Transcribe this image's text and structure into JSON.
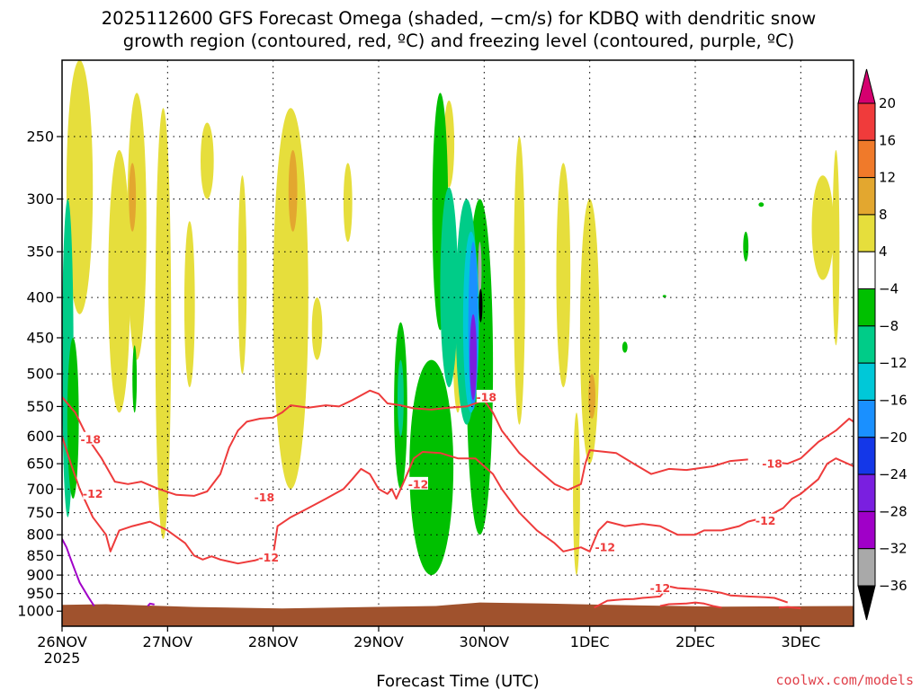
{
  "title": {
    "line1": "2025112600 GFS Forecast Omega (shaded, −cm/s) for KDBQ with dendritic snow",
    "line2": "growth region (contoured, red, ºC) and freezing level (contoured, purple, ºC)"
  },
  "credit": "coolwx.com/models",
  "chart_data": {
    "type": "heatmap",
    "title": "2025112600 GFS Forecast Omega (shaded, −cm/s) for KDBQ with dendritic snow growth region (contoured, red, ºC) and freezing level (contoured, purple, ºC)",
    "xlabel": "Forecast Time (UTC)",
    "ylabel": "",
    "x_ticks": [
      {
        "label": "26NOV",
        "sublabel": "2025",
        "t_hours": 0
      },
      {
        "label": "27NOV",
        "t_hours": 24
      },
      {
        "label": "28NOV",
        "t_hours": 48
      },
      {
        "label": "29NOV",
        "t_hours": 72
      },
      {
        "label": "30NOV",
        "t_hours": 96
      },
      {
        "label": "1DEC",
        "t_hours": 120
      },
      {
        "label": "2DEC",
        "t_hours": 144
      },
      {
        "label": "3DEC",
        "t_hours": 168
      }
    ],
    "xlim_hours": [
      0,
      180
    ],
    "y_ticks": [
      250,
      300,
      350,
      400,
      450,
      500,
      550,
      600,
      650,
      700,
      750,
      800,
      850,
      900,
      950,
      1000
    ],
    "ylim_hPa": [
      1045,
      200
    ],
    "y_scale": "log",
    "grid": "dotted",
    "colorbar": {
      "labels": [
        "20",
        "16",
        "12",
        "8",
        "4",
        "−4",
        "−8",
        "−12",
        "−16",
        "−20",
        "−24",
        "−28",
        "−32",
        "−36"
      ],
      "colors": [
        "#d5006f",
        "#f03b3b",
        "#f07a2a",
        "#e3a72f",
        "#e6de3c",
        "#ffffff",
        "#00c000",
        "#00cc88",
        "#00c8d8",
        "#1a90ff",
        "#1437e8",
        "#7a1fe0",
        "#a000c8",
        "#a9a9a9",
        "#000000"
      ]
    },
    "omega_regions": [
      {
        "color": "#e6de3c",
        "cx": 4,
        "p_top": 200,
        "p_bot": 420,
        "hw": 3
      },
      {
        "color": "#e6de3c",
        "cx": 13,
        "p_top": 260,
        "p_bot": 560,
        "hw": 2.5
      },
      {
        "color": "#e6de3c",
        "cx": 17,
        "p_top": 220,
        "p_bot": 480,
        "hw": 2.2
      },
      {
        "color": "#e3a72f",
        "cx": 16,
        "p_top": 270,
        "p_bot": 330,
        "hw": 0.8
      },
      {
        "color": "#e6de3c",
        "cx": 23,
        "p_top": 230,
        "p_bot": 810,
        "hw": 1.8
      },
      {
        "color": "#e6de3c",
        "cx": 29,
        "p_top": 320,
        "p_bot": 520,
        "hw": 1.2
      },
      {
        "color": "#e6de3c",
        "cx": 33,
        "p_top": 240,
        "p_bot": 300,
        "hw": 1.5
      },
      {
        "color": "#e6de3c",
        "cx": 41,
        "p_top": 280,
        "p_bot": 500,
        "hw": 1
      },
      {
        "color": "#e6de3c",
        "cx": 52,
        "p_top": 230,
        "p_bot": 700,
        "hw": 4
      },
      {
        "color": "#e3a72f",
        "cx": 52.5,
        "p_top": 260,
        "p_bot": 330,
        "hw": 1
      },
      {
        "color": "#e6de3c",
        "cx": 58,
        "p_top": 400,
        "p_bot": 480,
        "hw": 1.2
      },
      {
        "color": "#e6de3c",
        "cx": 65,
        "p_top": 270,
        "p_bot": 340,
        "hw": 1
      },
      {
        "color": "#e6de3c",
        "cx": 88,
        "p_top": 225,
        "p_bot": 290,
        "hw": 1.2
      },
      {
        "color": "#e6de3c",
        "cx": 90,
        "p_top": 350,
        "p_bot": 560,
        "hw": 1.2
      },
      {
        "color": "#e6de3c",
        "cx": 104,
        "p_top": 250,
        "p_bot": 580,
        "hw": 1.3
      },
      {
        "color": "#e6de3c",
        "cx": 114,
        "p_top": 270,
        "p_bot": 520,
        "hw": 1.6
      },
      {
        "color": "#e6de3c",
        "cx": 120,
        "p_top": 300,
        "p_bot": 650,
        "hw": 2.2
      },
      {
        "color": "#e3a72f",
        "cx": 120.5,
        "p_top": 500,
        "p_bot": 570,
        "hw": 0.8
      },
      {
        "color": "#e6de3c",
        "cx": 117,
        "p_top": 560,
        "p_bot": 900,
        "hw": 0.8
      },
      {
        "color": "#e6de3c",
        "cx": 173,
        "p_top": 280,
        "p_bot": 380,
        "hw": 2.5
      },
      {
        "color": "#e6de3c",
        "cx": 176,
        "p_top": 260,
        "p_bot": 460,
        "hw": 0.8
      },
      {
        "color": "#00cc88",
        "cx": 1.3,
        "p_top": 300,
        "p_bot": 760,
        "hw": 1.3
      },
      {
        "color": "#00c000",
        "cx": 2.5,
        "p_top": 450,
        "p_bot": 720,
        "hw": 1.3
      },
      {
        "color": "#00c000",
        "cx": 16.5,
        "p_top": 460,
        "p_bot": 560,
        "hw": 0.5
      },
      {
        "color": "#00c000",
        "cx": 77,
        "p_top": 430,
        "p_bot": 700,
        "hw": 1.5
      },
      {
        "color": "#00cc88",
        "cx": 77,
        "p_top": 480,
        "p_bot": 600,
        "hw": 0.7
      },
      {
        "color": "#00c000",
        "cx": 84,
        "p_top": 480,
        "p_bot": 900,
        "hw": 5
      },
      {
        "color": "#00c000",
        "cx": 95,
        "p_top": 300,
        "p_bot": 800,
        "hw": 3
      },
      {
        "color": "#00c000",
        "cx": 86,
        "p_top": 220,
        "p_bot": 440,
        "hw": 1.8
      },
      {
        "color": "#00cc88",
        "cx": 88,
        "p_top": 290,
        "p_bot": 520,
        "hw": 2
      },
      {
        "color": "#00cc88",
        "cx": 92,
        "p_top": 300,
        "p_bot": 580,
        "hw": 2.5
      },
      {
        "color": "#00c8d8",
        "cx": 93,
        "p_top": 330,
        "p_bot": 560,
        "hw": 1.8
      },
      {
        "color": "#1a90ff",
        "cx": 93.5,
        "p_top": 340,
        "p_bot": 555,
        "hw": 1.1
      },
      {
        "color": "#7a1fe0",
        "cx": 93.5,
        "p_top": 420,
        "p_bot": 540,
        "hw": 0.8
      },
      {
        "color": "#a9a9a9",
        "cx": 95,
        "p_top": 340,
        "p_bot": 400,
        "hw": 0.3
      },
      {
        "color": "#000000",
        "cx": 95.2,
        "p_top": 390,
        "p_bot": 430,
        "hw": 0.15
      },
      {
        "color": "#00c000",
        "cx": 155.5,
        "p_top": 330,
        "p_bot": 360,
        "hw": 0.6
      },
      {
        "color": "#00c000",
        "cx": 159,
        "p_top": 303,
        "p_bot": 307,
        "hw": 0.6
      },
      {
        "color": "#00c000",
        "cx": 128,
        "p_top": 455,
        "p_bot": 470,
        "hw": 0.6
      },
      {
        "color": "#00c000",
        "cx": 137,
        "p_top": 397,
        "p_bot": 400,
        "hw": 0.4
      }
    ],
    "contours": [
      {
        "color": "#ee3b3b",
        "label": "-18",
        "points": [
          [
            0,
            535
          ],
          [
            3,
            560
          ],
          [
            6,
            605
          ],
          [
            9,
            640
          ],
          [
            12,
            685
          ],
          [
            15,
            690
          ],
          [
            18,
            685
          ],
          [
            22,
            700
          ],
          [
            26,
            712
          ],
          [
            30,
            714
          ],
          [
            33,
            705
          ],
          [
            36,
            670
          ],
          [
            38,
            620
          ],
          [
            40,
            590
          ],
          [
            42,
            575
          ],
          [
            45,
            570
          ],
          [
            48,
            568
          ],
          [
            50,
            560
          ],
          [
            52,
            548
          ],
          [
            56,
            552
          ],
          [
            60,
            548
          ],
          [
            63,
            550
          ],
          [
            66,
            540
          ],
          [
            70,
            525
          ],
          [
            72,
            530
          ],
          [
            74,
            545
          ],
          [
            77,
            548
          ],
          [
            80,
            553
          ],
          [
            84,
            555
          ],
          [
            88,
            552
          ],
          [
            92,
            550
          ],
          [
            96,
            540
          ],
          [
            98,
            560
          ],
          [
            100,
            590
          ],
          [
            104,
            630
          ],
          [
            108,
            660
          ],
          [
            112,
            690
          ],
          [
            115,
            702
          ],
          [
            118,
            690
          ],
          [
            119,
            650
          ],
          [
            120,
            625
          ],
          [
            126,
            630
          ],
          [
            130,
            650
          ],
          [
            134,
            670
          ],
          [
            138,
            660
          ],
          [
            142,
            662
          ],
          [
            148,
            655
          ],
          [
            152,
            645
          ],
          [
            156,
            642
          ]
        ]
      },
      {
        "color": "#ee3b3b",
        "label": "-18",
        "points": [
          [
            160,
            645
          ],
          [
            165,
            650
          ],
          [
            168,
            640
          ],
          [
            172,
            610
          ],
          [
            176,
            590
          ],
          [
            179,
            570
          ],
          [
            180,
            575
          ]
        ]
      },
      {
        "color": "#ee3b3b",
        "label": "-12",
        "points": [
          [
            0,
            600
          ],
          [
            2,
            650
          ],
          [
            4,
            700
          ],
          [
            7,
            760
          ],
          [
            10,
            800
          ],
          [
            11,
            840
          ],
          [
            13,
            790
          ],
          [
            16,
            780
          ],
          [
            20,
            770
          ],
          [
            24,
            790
          ],
          [
            28,
            820
          ],
          [
            30,
            850
          ],
          [
            32,
            860
          ],
          [
            34,
            852
          ],
          [
            36,
            860
          ],
          [
            40,
            870
          ],
          [
            44,
            862
          ],
          [
            46,
            855
          ],
          [
            48,
            850
          ],
          [
            49,
            780
          ],
          [
            52,
            760
          ],
          [
            56,
            740
          ],
          [
            60,
            720
          ],
          [
            64,
            700
          ],
          [
            66,
            680
          ],
          [
            68,
            660
          ],
          [
            70,
            670
          ],
          [
            72,
            700
          ],
          [
            74,
            710
          ],
          [
            75,
            700
          ],
          [
            76,
            720
          ],
          [
            78,
            680
          ],
          [
            80,
            640
          ],
          [
            82,
            628
          ],
          [
            86,
            630
          ],
          [
            90,
            640
          ],
          [
            94,
            640
          ],
          [
            98,
            670
          ],
          [
            100,
            700
          ],
          [
            104,
            750
          ],
          [
            108,
            790
          ],
          [
            112,
            820
          ],
          [
            114,
            840
          ],
          [
            118,
            830
          ],
          [
            120,
            840
          ],
          [
            122,
            790
          ],
          [
            124,
            770
          ],
          [
            128,
            780
          ],
          [
            132,
            775
          ],
          [
            136,
            780
          ],
          [
            140,
            800
          ],
          [
            144,
            800
          ],
          [
            146,
            790
          ],
          [
            150,
            790
          ],
          [
            154,
            780
          ],
          [
            156,
            770
          ],
          [
            160,
            760
          ],
          [
            164,
            740
          ],
          [
            166,
            720
          ],
          [
            168,
            710
          ],
          [
            172,
            680
          ],
          [
            174,
            650
          ],
          [
            176,
            640
          ],
          [
            180,
            655
          ]
        ]
      },
      {
        "color": "#ee3b3b",
        "label": "-12",
        "points": [
          [
            121,
            990
          ],
          [
            124,
            970
          ],
          [
            126,
            968
          ],
          [
            128,
            966
          ],
          [
            130,
            965
          ],
          [
            132,
            962
          ],
          [
            134,
            960
          ],
          [
            136,
            958
          ],
          [
            138,
            930
          ],
          [
            140,
            935
          ],
          [
            144,
            938
          ],
          [
            146,
            940
          ],
          [
            150,
            948
          ],
          [
            152,
            955
          ],
          [
            156,
            958
          ],
          [
            160,
            960
          ],
          [
            162,
            962
          ],
          [
            165,
            975
          ]
        ]
      },
      {
        "color": "#ee3b3b",
        "label": "",
        "points": [
          [
            136,
            985
          ],
          [
            138,
            980
          ],
          [
            142,
            978
          ],
          [
            144,
            975
          ],
          [
            146,
            978
          ],
          [
            148,
            985
          ],
          [
            150,
            990
          ]
        ]
      },
      {
        "color": "#ee3b3b",
        "label": "",
        "points": [
          [
            163,
            990
          ],
          [
            165,
            988
          ],
          [
            168,
            992
          ]
        ]
      },
      {
        "color": "#a000c8",
        "label": "",
        "points": [
          [
            0,
            810
          ],
          [
            1,
            830
          ],
          [
            2,
            860
          ],
          [
            3,
            890
          ],
          [
            4,
            920
          ],
          [
            6,
            960
          ],
          [
            7.3,
            985
          ]
        ]
      },
      {
        "color": "#a000c8",
        "label": "",
        "points": [
          [
            19.5,
            985
          ],
          [
            20,
            978
          ],
          [
            21,
            981
          ]
        ]
      }
    ],
    "contour_labels": [
      {
        "text": "-18",
        "t": 6.5,
        "p": 605
      },
      {
        "text": "-12",
        "t": 7,
        "p": 710
      },
      {
        "text": "-18",
        "t": 46,
        "p": 717
      },
      {
        "text": "-12",
        "t": 47,
        "p": 855
      },
      {
        "text": "-12",
        "t": 81,
        "p": 690
      },
      {
        "text": "-18",
        "t": 96.5,
        "p": 535
      },
      {
        "text": "-12",
        "t": 123.5,
        "p": 830
      },
      {
        "text": "-18",
        "t": 161.5,
        "p": 650
      },
      {
        "text": "-12",
        "t": 160,
        "p": 768
      },
      {
        "text": "-12",
        "t": 136,
        "p": 935
      }
    ],
    "terrain_color": "#a0522d",
    "terrain_top_hPa": [
      [
        0,
        982
      ],
      [
        10,
        980
      ],
      [
        30,
        988
      ],
      [
        50,
        992
      ],
      [
        70,
        988
      ],
      [
        85,
        985
      ],
      [
        95,
        975
      ],
      [
        110,
        978
      ],
      [
        130,
        983
      ],
      [
        150,
        987
      ],
      [
        180,
        985
      ]
    ]
  }
}
